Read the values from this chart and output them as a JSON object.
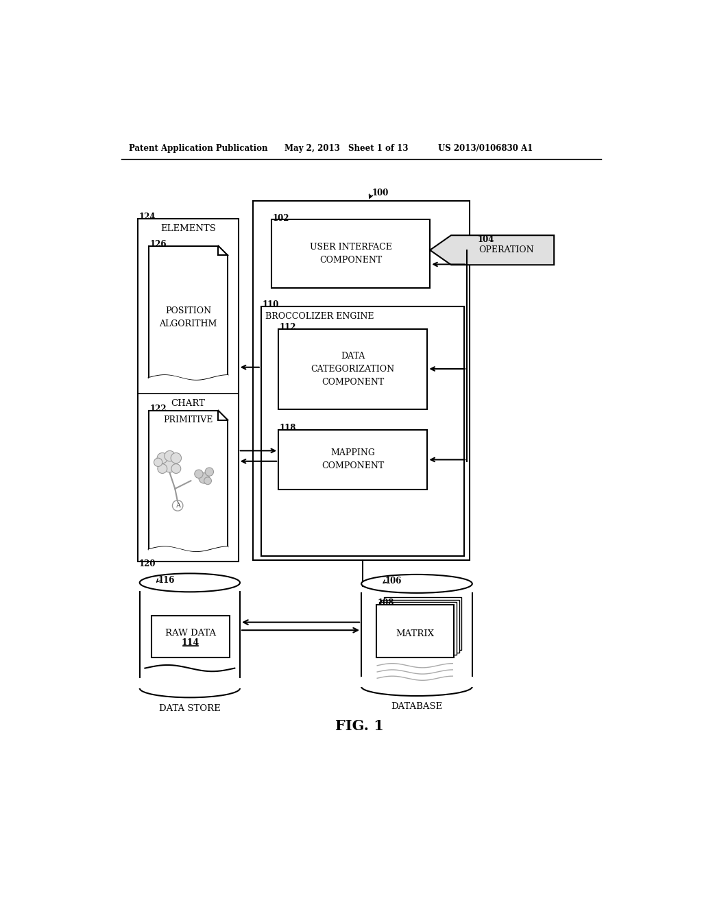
{
  "bg_color": "#ffffff",
  "header_text": "Patent Application Publication",
  "header_date": "May 2, 2013",
  "header_sheet": "Sheet 1 of 13",
  "header_patent": "US 2013/0106830 A1",
  "fig_label": "FIG. 1",
  "lc": "#000000",
  "tc": "#000000",
  "gray": "#888888"
}
